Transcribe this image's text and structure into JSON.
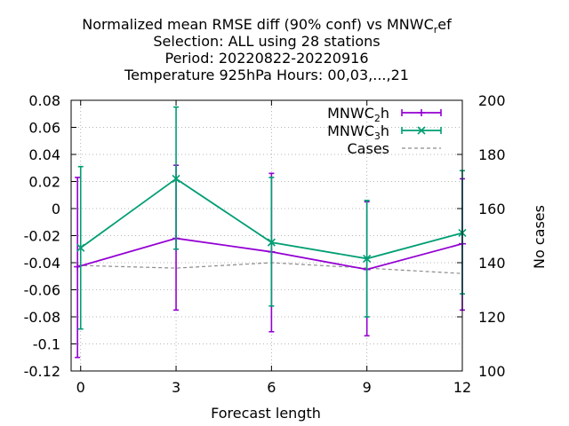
{
  "chart_data": {
    "type": "line",
    "title_lines": [
      {
        "pre": "Normalized mean RMSE diff (90% conf) vs MNWC",
        "sub": "r",
        "post": "ef"
      },
      {
        "pre": "Selection: ALL using    28 stations",
        "sub": "",
        "post": ""
      },
      {
        "pre": "Period: 20220822-20220916",
        "sub": "",
        "post": ""
      },
      {
        "pre": "Temperature 925hPa   Hours:  00,03,...,21",
        "sub": "",
        "post": ""
      }
    ],
    "xlabel": "Forecast length",
    "ylabel": "",
    "y2label": "No cases",
    "xlim": [
      -0.3,
      12
    ],
    "ylim": [
      -0.12,
      0.08
    ],
    "y2lim": [
      100,
      200
    ],
    "x_ticks": [
      {
        "v": 0,
        "label": "0"
      },
      {
        "v": 3,
        "label": "3"
      },
      {
        "v": 6,
        "label": "6"
      },
      {
        "v": 9,
        "label": "9"
      },
      {
        "v": 12,
        "label": "12"
      }
    ],
    "y_ticks": [
      {
        "v": 0.08,
        "label": "0.08"
      },
      {
        "v": 0.06,
        "label": "0.06"
      },
      {
        "v": 0.04,
        "label": "0.04"
      },
      {
        "v": 0.02,
        "label": "0.02"
      },
      {
        "v": 0,
        "label": "0"
      },
      {
        "v": -0.02,
        "label": "-0.02"
      },
      {
        "v": -0.04,
        "label": "-0.04"
      },
      {
        "v": -0.06,
        "label": "-0.06"
      },
      {
        "v": -0.08,
        "label": "-0.08"
      },
      {
        "v": -0.1,
        "label": "-0.1"
      },
      {
        "v": -0.12,
        "label": "-0.12"
      }
    ],
    "y2_ticks": [
      {
        "v": 200,
        "label": "200"
      },
      {
        "v": 180,
        "label": "180"
      },
      {
        "v": 160,
        "label": "160"
      },
      {
        "v": 140,
        "label": "140"
      },
      {
        "v": 120,
        "label": "120"
      },
      {
        "v": 100,
        "label": "100"
      }
    ],
    "grid": true,
    "legend_position": "top-right",
    "series": [
      {
        "legend": {
          "pre": "MNWC",
          "sub": "2",
          "post": "h"
        },
        "color": "#9400D3",
        "marker": "plus",
        "axis": "y",
        "x": [
          -0.1,
          3,
          6,
          9,
          12
        ],
        "y": [
          -0.043,
          -0.022,
          -0.032,
          -0.045,
          -0.026
        ],
        "err_low": [
          -0.11,
          -0.075,
          -0.091,
          -0.094,
          -0.075
        ],
        "err_high": [
          0.023,
          0.032,
          0.026,
          0.005,
          0.022
        ]
      },
      {
        "legend": {
          "pre": "MNWC",
          "sub": "3",
          "post": "h"
        },
        "color": "#009E73",
        "marker": "x",
        "axis": "y",
        "x": [
          0,
          3,
          6,
          9,
          12
        ],
        "y": [
          -0.029,
          0.022,
          -0.025,
          -0.037,
          -0.018
        ],
        "err_low": [
          -0.089,
          -0.03,
          -0.072,
          -0.08,
          -0.063
        ],
        "err_high": [
          0.031,
          0.075,
          0.023,
          0.006,
          0.028
        ]
      },
      {
        "legend": {
          "pre": "Cases",
          "sub": "",
          "post": ""
        },
        "color": "#8C8C8C",
        "marker": "none",
        "dashed": true,
        "axis": "y2",
        "x": [
          -0.1,
          3,
          6,
          9,
          12
        ],
        "y": [
          139,
          138,
          140,
          138,
          136
        ]
      }
    ]
  }
}
